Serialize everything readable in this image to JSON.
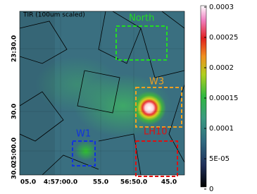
{
  "image": {
    "title": "TIR (100um scaled)",
    "x_tick_labels": [
      "05.0",
      "4:57:00.0",
      "55.0",
      "56:50.0",
      "45.0"
    ],
    "y_tick_labels": [
      "23:30.0",
      "30.0",
      "25:00.0",
      "30.0"
    ],
    "regions": [
      {
        "label": "North",
        "color": "#22dd22"
      },
      {
        "label": "W3",
        "color": "#f0a020"
      },
      {
        "label": "LH10",
        "color": "#dd1111"
      },
      {
        "label": "W1",
        "color": "#1133dd"
      }
    ]
  },
  "colorbar": {
    "labels": [
      "0.0003",
      "0.00025",
      "0.0002",
      "0.00015",
      "0.0001",
      "5E-05",
      "0"
    ]
  }
}
